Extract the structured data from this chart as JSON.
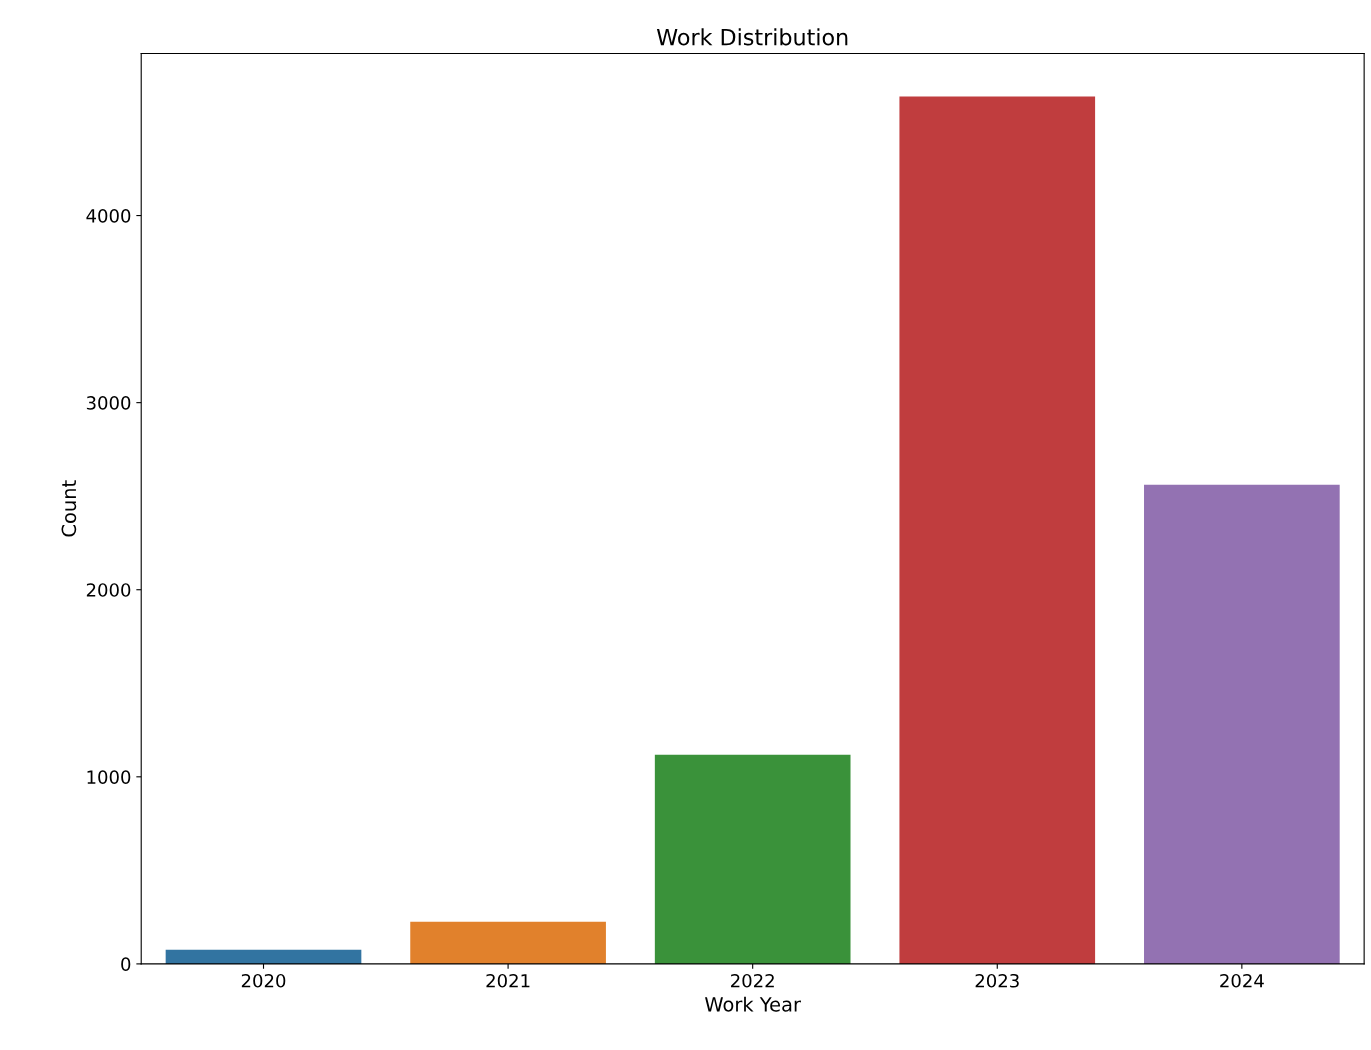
{
  "chart_data": {
    "type": "bar",
    "title": "Work Distribution",
    "xlabel": "Work Year",
    "ylabel": "Count",
    "categories": [
      "2020",
      "2021",
      "2022",
      "2023",
      "2024"
    ],
    "values": [
      75,
      225,
      1118,
      4636,
      2561
    ],
    "colors": [
      "#3274a1",
      "#e1812c",
      "#3a923a",
      "#c03d3e",
      "#9372b2"
    ],
    "ylim": [
      0,
      4866
    ],
    "yticks": [
      0,
      1000,
      2000,
      3000,
      4000
    ],
    "grid": false
  }
}
